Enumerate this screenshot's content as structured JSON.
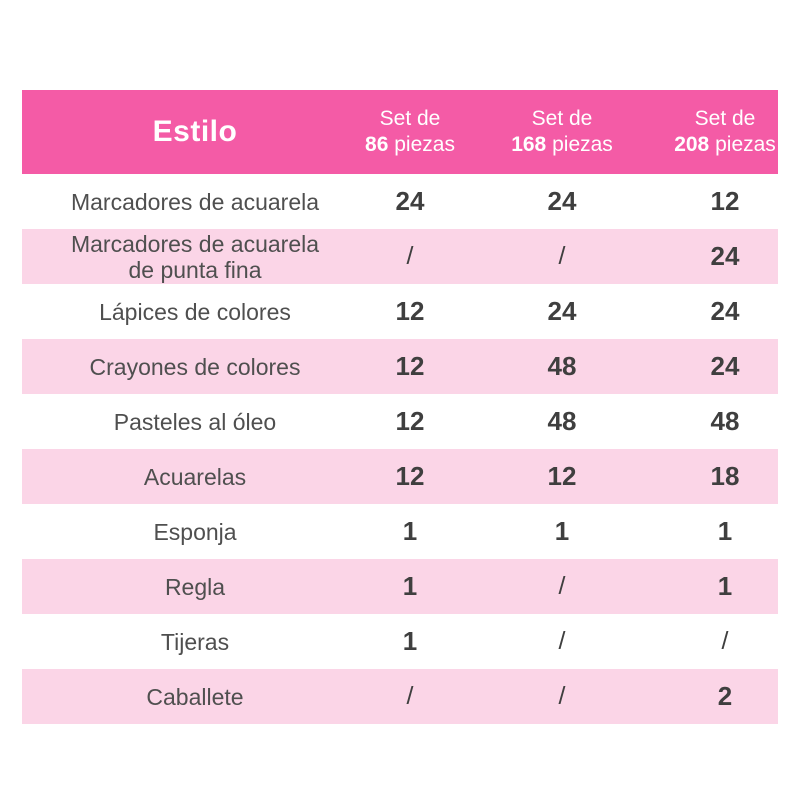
{
  "page": {
    "background": "#FFFFFF"
  },
  "table": {
    "colors": {
      "header_bg": "#F45BA6",
      "header_text": "#FFFFFF",
      "stripe_bg": "#FBD5E7",
      "row_bg": "#FFFFFF",
      "label_text": "#4F4F4F",
      "value_text": "#3F3F3F"
    },
    "header": {
      "style_label": "Estilo",
      "columns": [
        {
          "prefix": "Set de",
          "count": "86",
          "unit": "piezas"
        },
        {
          "prefix": "Set de",
          "count": "168",
          "unit": "piezas"
        },
        {
          "prefix": "Set de",
          "count": "208",
          "unit": "piezas"
        }
      ]
    },
    "rows": [
      {
        "label": "Marcadores de acuarela",
        "values": [
          "24",
          "24",
          "12"
        ]
      },
      {
        "label": "Marcadores de acuarela\nde punta fina",
        "values": [
          "/",
          "/",
          "24"
        ]
      },
      {
        "label": "Lápices de colores",
        "values": [
          "12",
          "24",
          "24"
        ]
      },
      {
        "label": "Crayones de colores",
        "values": [
          "12",
          "48",
          "24"
        ]
      },
      {
        "label": "Pasteles al óleo",
        "values": [
          "12",
          "48",
          "48"
        ]
      },
      {
        "label": "Acuarelas",
        "values": [
          "12",
          "12",
          "18"
        ]
      },
      {
        "label": "Esponja",
        "values": [
          "1",
          "1",
          "1"
        ]
      },
      {
        "label": "Regla",
        "values": [
          "1",
          "/",
          "1"
        ]
      },
      {
        "label": "Tijeras",
        "values": [
          "1",
          "/",
          "/"
        ]
      },
      {
        "label": "Caballete",
        "values": [
          "/",
          "/",
          "2"
        ]
      }
    ]
  },
  "chart_data": {
    "type": "table",
    "title": "Estilo",
    "columns": [
      "Estilo",
      "Set de 86 piezas",
      "Set de 168 piezas",
      "Set de 208 piezas"
    ],
    "rows": [
      [
        "Marcadores de acuarela",
        "24",
        "24",
        "12"
      ],
      [
        "Marcadores de acuarela de punta fina",
        "/",
        "/",
        "24"
      ],
      [
        "Lápices de colores",
        "12",
        "24",
        "24"
      ],
      [
        "Crayones de colores",
        "12",
        "48",
        "24"
      ],
      [
        "Pasteles al óleo",
        "12",
        "48",
        "48"
      ],
      [
        "Acuarelas",
        "12",
        "12",
        "18"
      ],
      [
        "Esponja",
        "1",
        "1",
        "1"
      ],
      [
        "Regla",
        "1",
        "/",
        "1"
      ],
      [
        "Tijeras",
        "1",
        "/",
        "/"
      ],
      [
        "Caballete",
        "/",
        "/",
        "2"
      ]
    ]
  }
}
